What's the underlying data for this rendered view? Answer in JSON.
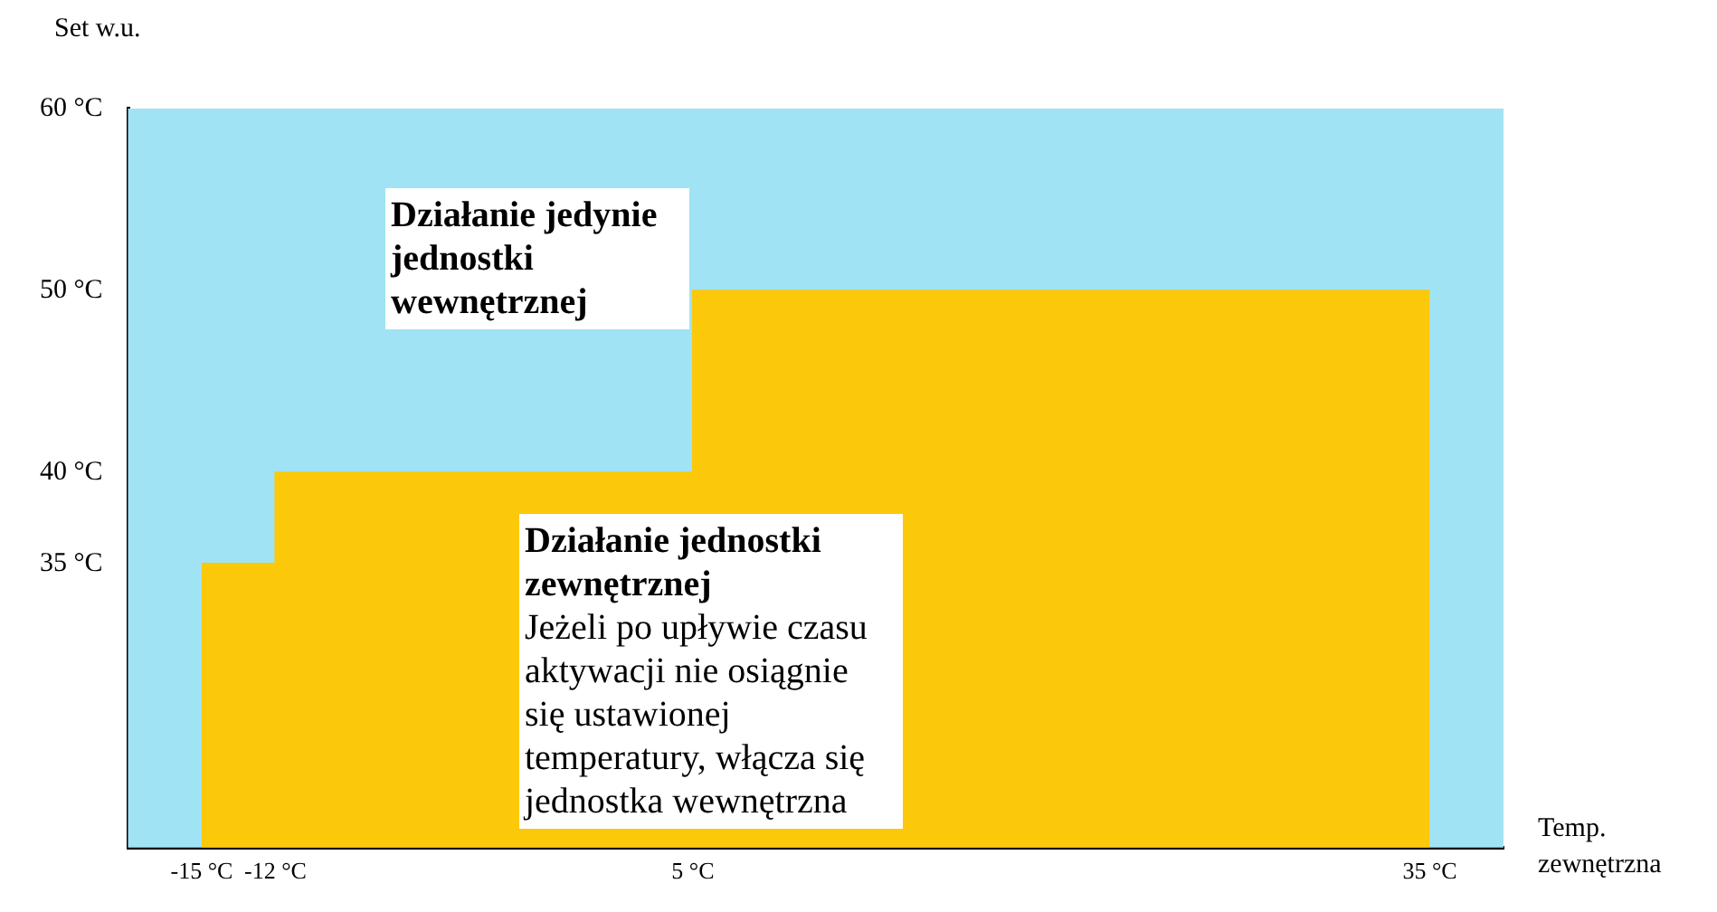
{
  "chart_data": {
    "type": "area",
    "xlabel": "Temp. zewnętrzna",
    "ylabel": "Set w.u.",
    "series": [
      {
        "color": "#fcc80a",
        "x": [
          -15,
          -12,
          -12,
          5,
          5,
          35
        ],
        "values": [
          35,
          35,
          40,
          40,
          50,
          50
        ]
      }
    ],
    "xlim": [
      -18,
      38
    ],
    "xticks": [
      {
        "value": -15,
        "label": "-15 °C"
      },
      {
        "value": -12,
        "label": "-12 °C"
      },
      {
        "value": 5,
        "label": "5 °C"
      },
      {
        "value": 35,
        "label": "35 °C"
      }
    ],
    "ylim": [
      19.4,
      60
    ],
    "yticks": [
      {
        "value": 35,
        "label": "35 °C"
      },
      {
        "value": 40,
        "label": "40 °C"
      },
      {
        "value": 50,
        "label": "50 °C"
      },
      {
        "value": 60,
        "label": "60 °C"
      }
    ],
    "bands": [
      {
        "axis": "y",
        "from": 19.4,
        "to": 60,
        "color": "#a0e3f5"
      }
    ],
    "annotations": [
      "Działanie jedynie jednostki wewnętrznej",
      "Działanie jednostki zewnętrznej",
      "Jeżeli po upływie czasu aktywacji nie osiągnie się ustawionej temperatury, włącza się jednostka wewnętrzna"
    ],
    "grid": false,
    "legend": false
  }
}
